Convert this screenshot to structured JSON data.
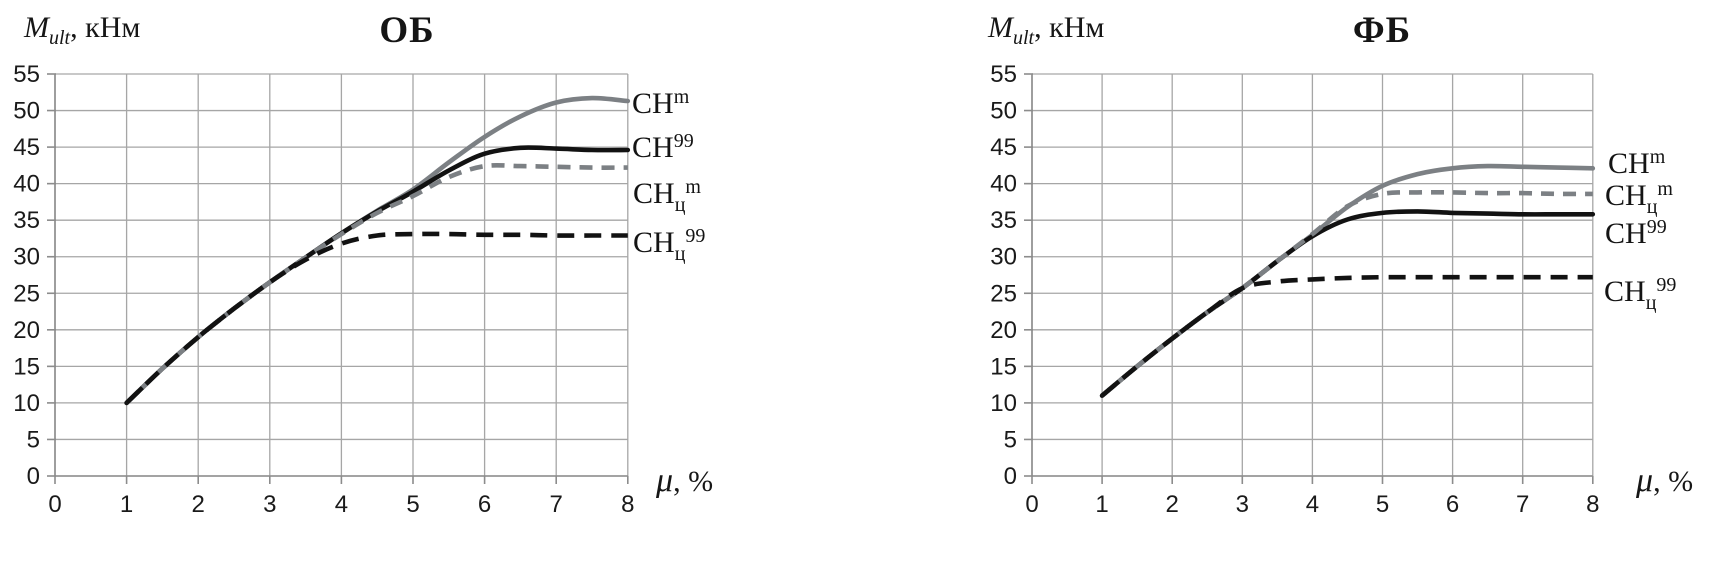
{
  "chart_data": [
    {
      "type": "line",
      "title": "ОБ",
      "xlabel": "μ, %",
      "ylabel": "M_ult, кНм",
      "ylabel_parts": {
        "main": "M",
        "sub": "ult",
        "rest": ", кНм"
      },
      "xlabel_parts": {
        "mu": "μ",
        "rest": ", %"
      },
      "xlim": [
        0,
        8
      ],
      "ylim": [
        0,
        55
      ],
      "x_ticks": [
        0,
        1,
        2,
        3,
        4,
        5,
        6,
        7,
        8
      ],
      "y_ticks": [
        0,
        5,
        10,
        15,
        20,
        25,
        30,
        35,
        40,
        45,
        50,
        55
      ],
      "grid": true,
      "legend_position": "right-of-plot",
      "x": [
        1,
        1.5,
        2,
        2.5,
        3,
        3.5,
        4,
        4.5,
        5,
        5.5,
        6,
        6.5,
        7,
        7.5,
        8
      ],
      "series": [
        {
          "name": "СН^m",
          "label": {
            "base": "СН",
            "sub": "",
            "sup": "m"
          },
          "color": "#7c8084",
          "dash": false,
          "values": [
            10,
            14.7,
            19,
            22.9,
            26.5,
            29.9,
            33.2,
            36.3,
            39.2,
            42.9,
            46.4,
            49.2,
            51.1,
            51.7,
            51.3
          ]
        },
        {
          "name": "СН^99",
          "label": {
            "base": "СН",
            "sub": "",
            "sup": "99"
          },
          "color": "#121212",
          "dash": false,
          "values": [
            10,
            14.7,
            19,
            22.9,
            26.5,
            29.9,
            33.2,
            36.2,
            38.9,
            41.8,
            44.1,
            44.9,
            44.8,
            44.6,
            44.6
          ]
        },
        {
          "name": "СН_ц^m",
          "label": {
            "base": "СН",
            "sub": "ц",
            "sup": "m"
          },
          "color": "#7c8084",
          "dash": true,
          "values": [
            10,
            14.7,
            19,
            22.9,
            26.5,
            29.9,
            33.1,
            36,
            38.3,
            40.9,
            42.4,
            42.4,
            42.3,
            42.2,
            42.2
          ]
        },
        {
          "name": "СН_ц^99",
          "label": {
            "base": "СН",
            "sub": "ц",
            "sup": "99"
          },
          "color": "#121212",
          "dash": true,
          "values": [
            10,
            14.7,
            19,
            22.9,
            26.5,
            29.6,
            31.8,
            32.9,
            33.1,
            33.1,
            33,
            33,
            32.9,
            32.9,
            32.9
          ]
        }
      ]
    },
    {
      "type": "line",
      "title": "ФБ",
      "xlabel": "μ, %",
      "ylabel": "M_ult, кНм",
      "ylabel_parts": {
        "main": "M",
        "sub": "ult",
        "rest": ", кНм"
      },
      "xlabel_parts": {
        "mu": "μ",
        "rest": ", %"
      },
      "xlim": [
        0,
        8
      ],
      "ylim": [
        0,
        55
      ],
      "x_ticks": [
        0,
        1,
        2,
        3,
        4,
        5,
        6,
        7,
        8
      ],
      "y_ticks": [
        0,
        5,
        10,
        15,
        20,
        25,
        30,
        35,
        40,
        45,
        50,
        55
      ],
      "grid": true,
      "legend_position": "right-of-plot",
      "x": [
        1,
        1.5,
        2,
        2.5,
        3,
        3.5,
        4,
        4.5,
        5,
        5.5,
        6,
        6.5,
        7,
        7.5,
        8
      ],
      "series": [
        {
          "name": "СН^m",
          "label": {
            "base": "СН",
            "sub": "",
            "sup": "m"
          },
          "color": "#7c8084",
          "dash": false,
          "values": [
            11,
            15,
            18.8,
            22.4,
            25.7,
            29.4,
            33,
            36.8,
            39.7,
            41.3,
            42.1,
            42.4,
            42.3,
            42.2,
            42.1
          ]
        },
        {
          "name": "СН^99",
          "label": {
            "base": "СН",
            "sub": "",
            "sup": "99"
          },
          "color": "#121212",
          "dash": false,
          "values": [
            11,
            15,
            18.8,
            22.4,
            25.7,
            29.4,
            32.8,
            35.1,
            36,
            36.2,
            36,
            35.9,
            35.8,
            35.8,
            35.8
          ]
        },
        {
          "name": "СН_ц^m",
          "label": {
            "base": "СН",
            "sub": "ц",
            "sup": "m"
          },
          "color": "#7c8084",
          "dash": true,
          "values": [
            11,
            15,
            18.8,
            22.4,
            25.7,
            29.4,
            33.1,
            36.9,
            38.6,
            38.8,
            38.8,
            38.7,
            38.7,
            38.6,
            38.6
          ]
        },
        {
          "name": "СН_ц^99",
          "label": {
            "base": "СН",
            "sub": "ц",
            "sup": "99"
          },
          "color": "#121212",
          "dash": true,
          "values": [
            11,
            15,
            18.8,
            22.4,
            25.7,
            26.6,
            26.9,
            27.1,
            27.2,
            27.2,
            27.2,
            27.2,
            27.2,
            27.2,
            27.2
          ]
        }
      ]
    }
  ],
  "style": {
    "grid_color": "#a6a6a6",
    "axis_color": "#8c8c8c",
    "tick_label_color": "#1a1a1a"
  }
}
